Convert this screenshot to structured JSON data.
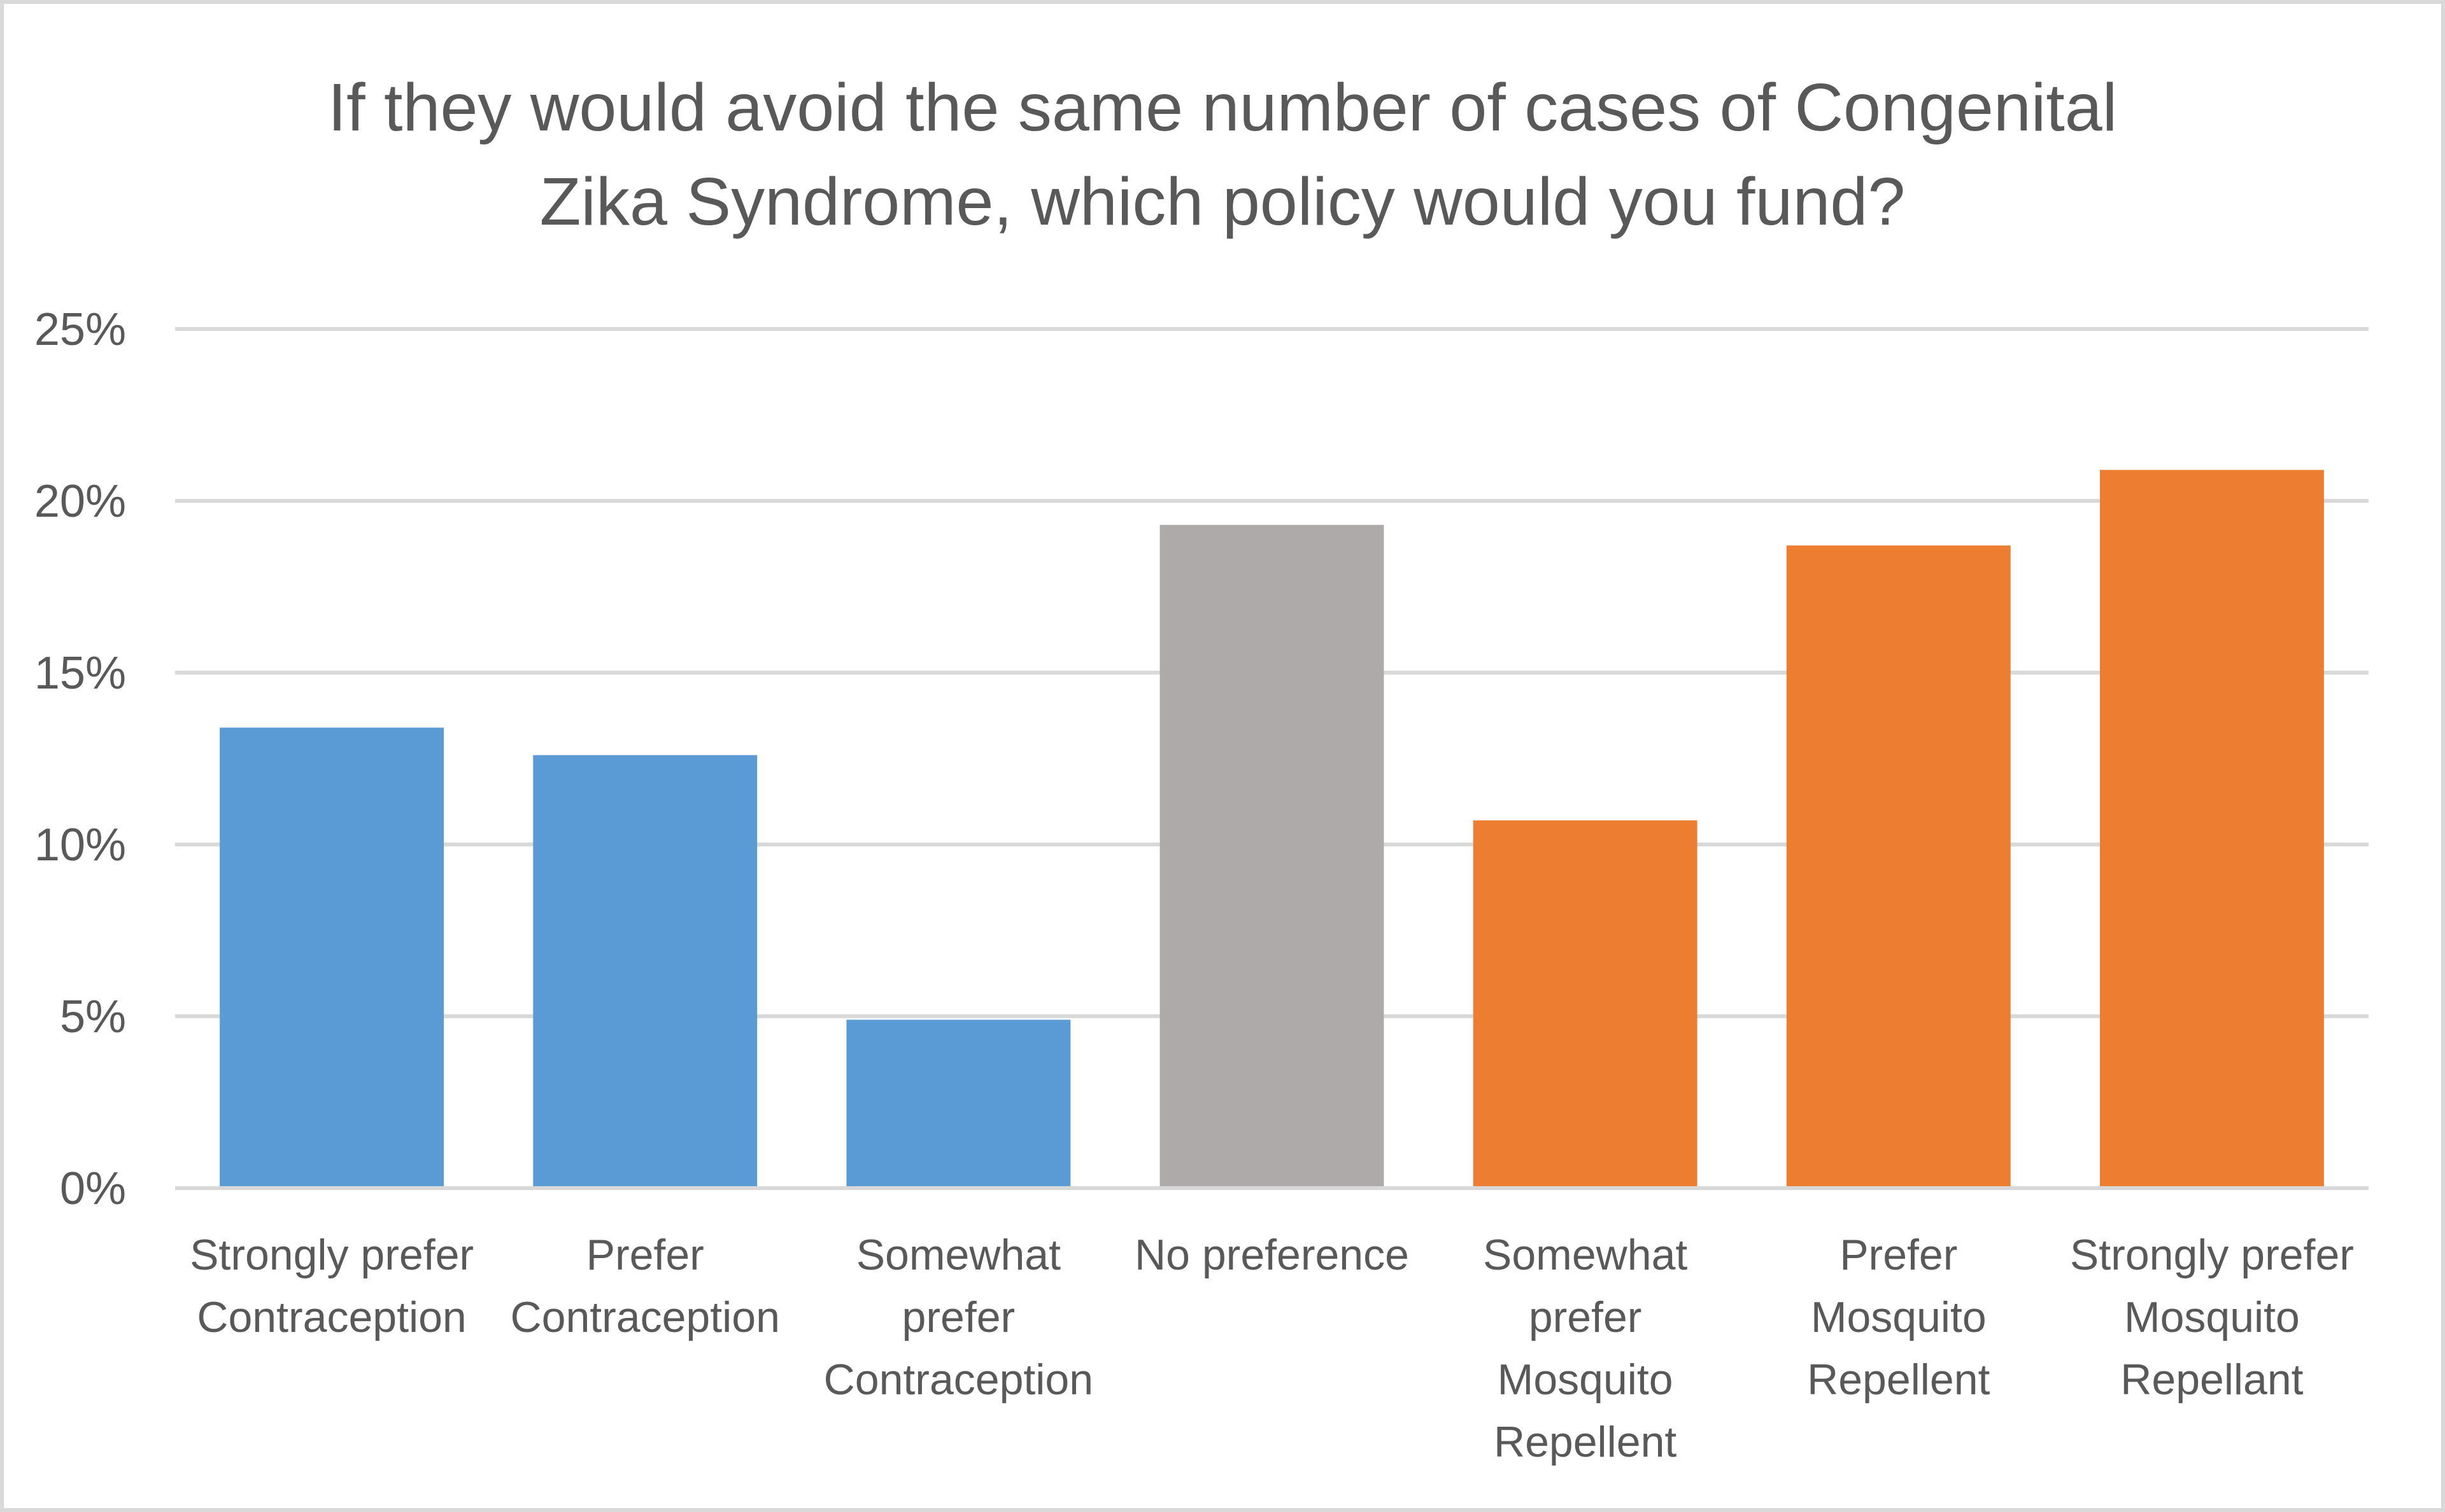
{
  "chart_data": {
    "type": "bar",
    "title_lines": [
      "If they would avoid the same number of cases of Congenital",
      "Zika Syndrome, which policy would you fund?"
    ],
    "categories": [
      [
        "Strongly prefer",
        "Contraception"
      ],
      [
        "Prefer",
        "Contraception"
      ],
      [
        "Somewhat",
        "prefer",
        "Contraception"
      ],
      [
        "No preference"
      ],
      [
        "Somewhat",
        "prefer",
        "Mosquito",
        "Repellent"
      ],
      [
        "Prefer",
        "Mosquito",
        "Repellent"
      ],
      [
        "Strongly prefer",
        "Mosquito",
        "Repellant"
      ]
    ],
    "values": [
      0.134,
      0.126,
      0.049,
      0.193,
      0.107,
      0.187,
      0.209
    ],
    "colors": [
      "#5b9bd5",
      "#5b9bd5",
      "#5b9bd5",
      "#aeaaaa",
      "#ed7d31",
      "#ed7d31",
      "#ed7d31"
    ],
    "ylim": [
      0,
      0.25
    ],
    "yticks": [
      {
        "value": 0,
        "label": "0%"
      },
      {
        "value": 0.05,
        "label": "5%"
      },
      {
        "value": 0.1,
        "label": "10%"
      },
      {
        "value": 0.15,
        "label": "15%"
      },
      {
        "value": 0.2,
        "label": "20%"
      },
      {
        "value": 0.25,
        "label": "25%"
      }
    ],
    "grid": true,
    "legend": "none",
    "gridline_color": "#d9d9d9"
  }
}
